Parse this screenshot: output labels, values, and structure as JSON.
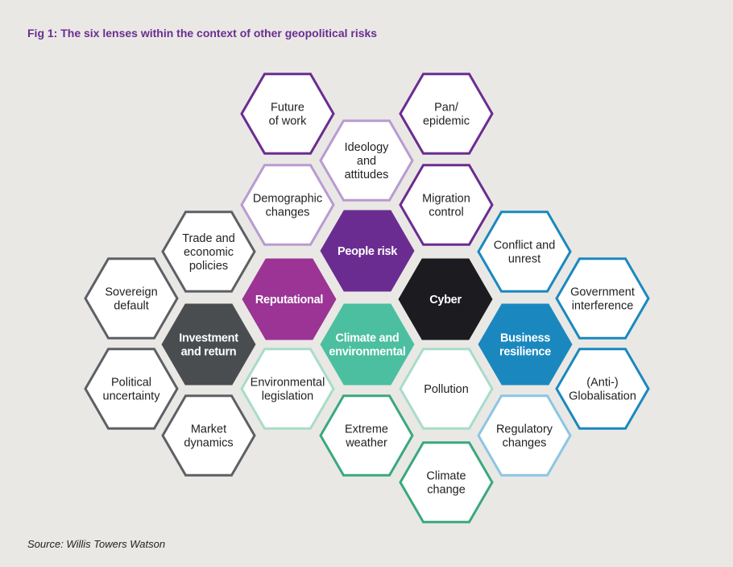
{
  "title": "Fig 1: The six lenses within the context of other geopolitical risks",
  "source": "Source: Willis Towers Watson",
  "colors": {
    "background": "#e9e8e5",
    "people_purple": "#6b2c91",
    "people_purple_light": "#b99bd0",
    "reputational_magenta": "#9b3494",
    "investment_grey": "#4a4d50",
    "investment_grey_light": "#5d6064",
    "climate_teal": "#4bbf9f",
    "climate_teal_light": "#a8dcc9",
    "climate_teal_dark": "#3aa87f",
    "cyber_black": "#1c1b20",
    "business_blue": "#1a88bf",
    "business_blue_light": "#8cc6e3",
    "hex_fill": "#ffffff"
  },
  "hexagons": [
    {
      "id": "people-risk",
      "lines": [
        "People risk"
      ],
      "fill": "#6b2c91",
      "stroke": "#6b2c91",
      "text_color": "#ffffff",
      "bold": true
    },
    {
      "id": "reputational",
      "lines": [
        "Reputational"
      ],
      "fill": "#9b3494",
      "stroke": "#9b3494",
      "text_color": "#ffffff",
      "bold": true
    },
    {
      "id": "cyber",
      "lines": [
        "Cyber"
      ],
      "fill": "#1c1b20",
      "stroke": "#1c1b20",
      "text_color": "#ffffff",
      "bold": true
    },
    {
      "id": "investment-and-return",
      "lines": [
        "Investment",
        "and return"
      ],
      "fill": "#4a4d50",
      "stroke": "#4a4d50",
      "text_color": "#ffffff",
      "bold": true
    },
    {
      "id": "climate-and-environmental",
      "lines": [
        "Climate and",
        "environmental"
      ],
      "fill": "#4bbf9f",
      "stroke": "#4bbf9f",
      "text_color": "#ffffff",
      "bold": true
    },
    {
      "id": "business-resilience",
      "lines": [
        "Business",
        "resilience"
      ],
      "fill": "#1a88bf",
      "stroke": "#1a88bf",
      "text_color": "#ffffff",
      "bold": true
    },
    {
      "id": "future-of-work",
      "lines": [
        "Future",
        "of work"
      ],
      "fill": "#ffffff",
      "stroke": "#6b2c91",
      "text_color": "#222222",
      "bold": false
    },
    {
      "id": "pan-epidemic",
      "lines": [
        "Pan/",
        "epidemic"
      ],
      "fill": "#ffffff",
      "stroke": "#6b2c91",
      "text_color": "#222222",
      "bold": false
    },
    {
      "id": "ideology-and-attitudes",
      "lines": [
        "Ideology",
        "and",
        "attitudes"
      ],
      "fill": "#ffffff",
      "stroke": "#b99bd0",
      "text_color": "#222222",
      "bold": false
    },
    {
      "id": "demographic-changes",
      "lines": [
        "Demographic",
        "changes"
      ],
      "fill": "#ffffff",
      "stroke": "#b99bd0",
      "text_color": "#222222",
      "bold": false
    },
    {
      "id": "migration-control",
      "lines": [
        "Migration",
        "control"
      ],
      "fill": "#ffffff",
      "stroke": "#6b2c91",
      "text_color": "#222222",
      "bold": false
    },
    {
      "id": "trade-and-economic-policies",
      "lines": [
        "Trade and",
        "economic",
        "policies"
      ],
      "fill": "#ffffff",
      "stroke": "#5d6064",
      "text_color": "#222222",
      "bold": false
    },
    {
      "id": "sovereign-default",
      "lines": [
        "Sovereign",
        "default"
      ],
      "fill": "#ffffff",
      "stroke": "#5d6064",
      "text_color": "#222222",
      "bold": false
    },
    {
      "id": "political-uncertainty",
      "lines": [
        "Political",
        "uncertainty"
      ],
      "fill": "#ffffff",
      "stroke": "#5d6064",
      "text_color": "#222222",
      "bold": false
    },
    {
      "id": "market-dynamics",
      "lines": [
        "Market",
        "dynamics"
      ],
      "fill": "#ffffff",
      "stroke": "#5d6064",
      "text_color": "#222222",
      "bold": false
    },
    {
      "id": "environmental-legislation",
      "lines": [
        "Environmental",
        "legislation"
      ],
      "fill": "#ffffff",
      "stroke": "#a8dcc9",
      "text_color": "#222222",
      "bold": false
    },
    {
      "id": "pollution",
      "lines": [
        "Pollution"
      ],
      "fill": "#ffffff",
      "stroke": "#a8dcc9",
      "text_color": "#222222",
      "bold": false
    },
    {
      "id": "extreme-weather",
      "lines": [
        "Extreme",
        "weather"
      ],
      "fill": "#ffffff",
      "stroke": "#3aa87f",
      "text_color": "#222222",
      "bold": false
    },
    {
      "id": "climate-change",
      "lines": [
        "Climate",
        "change"
      ],
      "fill": "#ffffff",
      "stroke": "#3aa87f",
      "text_color": "#222222",
      "bold": false
    },
    {
      "id": "conflict-and-unrest",
      "lines": [
        "Conflict and",
        "unrest"
      ],
      "fill": "#ffffff",
      "stroke": "#1a88bf",
      "text_color": "#222222",
      "bold": false
    },
    {
      "id": "government-interference",
      "lines": [
        "Government",
        "interference"
      ],
      "fill": "#ffffff",
      "stroke": "#1a88bf",
      "text_color": "#222222",
      "bold": false
    },
    {
      "id": "anti-globalisation",
      "lines": [
        "(Anti-)",
        "Globalisation"
      ],
      "fill": "#ffffff",
      "stroke": "#1a88bf",
      "text_color": "#222222",
      "bold": false
    },
    {
      "id": "regulatory-changes",
      "lines": [
        "Regulatory",
        "changes"
      ],
      "fill": "#ffffff",
      "stroke": "#8cc6e3",
      "text_color": "#222222",
      "bold": false
    }
  ]
}
